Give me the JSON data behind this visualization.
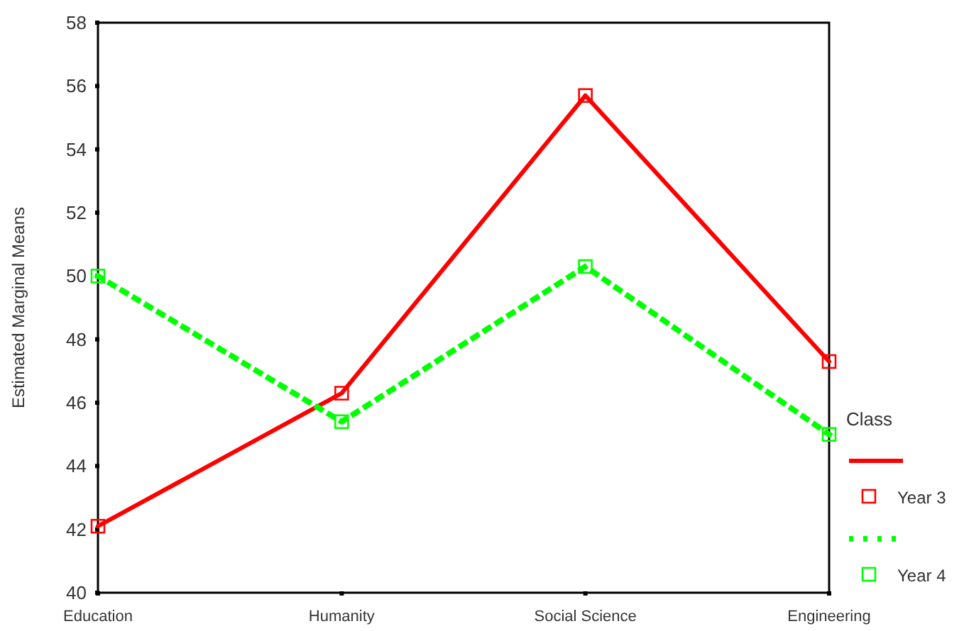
{
  "chart_data": {
    "type": "line",
    "ylabel": "Estimated Marginal Means",
    "legend_title": "Class",
    "legend": "right",
    "marker": "square",
    "categories": [
      "Education",
      "Humanity",
      "Social Science",
      "Engineering"
    ],
    "ylim": [
      40,
      58
    ],
    "yticks": [
      40,
      42,
      44,
      46,
      48,
      50,
      52,
      54,
      56,
      58
    ],
    "series": [
      {
        "name": "Year 3",
        "color": "#ff0000",
        "line_style": "solid",
        "values": [
          42.1,
          46.3,
          55.7,
          47.3
        ]
      },
      {
        "name": "Year 4",
        "color": "#00ff00",
        "line_style": "dotted",
        "values": [
          50.0,
          45.4,
          50.3,
          45.0
        ]
      }
    ]
  }
}
